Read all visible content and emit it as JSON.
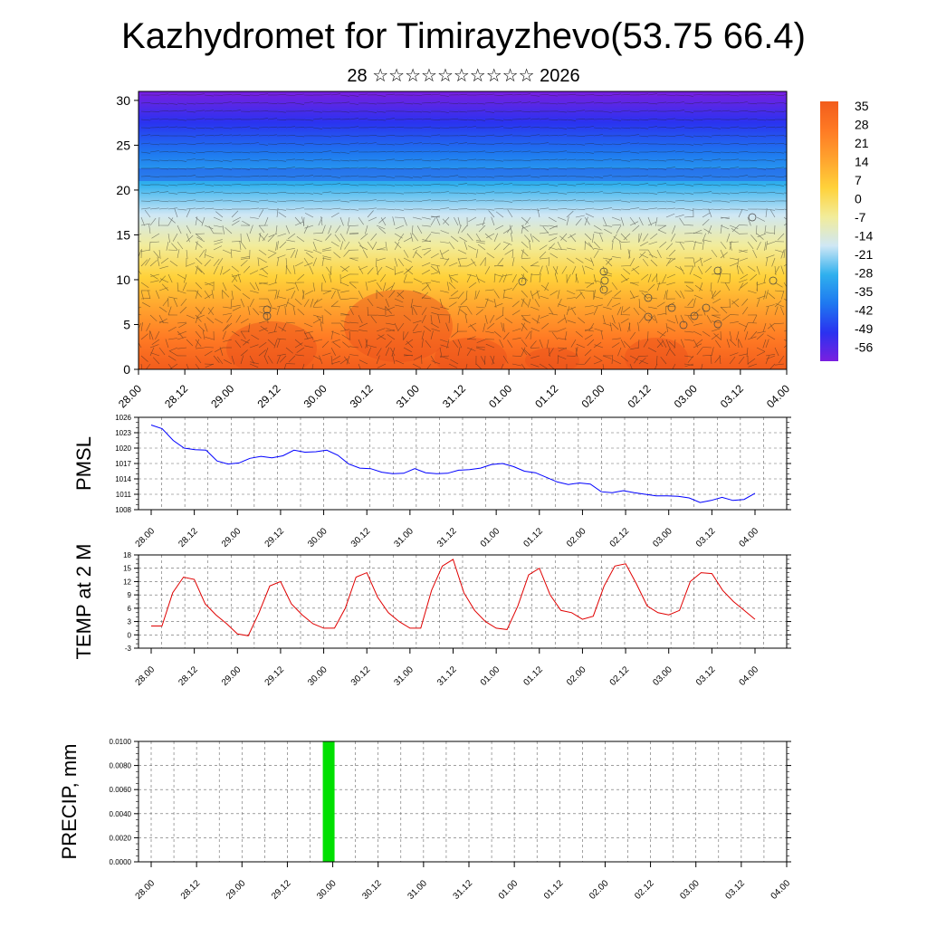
{
  "title": "Kazhydromet for Timirayzhevo(53.75 66.4)",
  "subtitle": "28 ☆☆☆☆☆☆☆☆☆☆ 2026",
  "chart_data": [
    {
      "id": "cross-section",
      "type": "heatmap",
      "description_of_fill": "temperature cross-section with wind barbs",
      "y_range": [
        0,
        31
      ],
      "y_ticks": [
        0,
        5,
        10,
        15,
        20,
        25,
        30
      ],
      "x_ticks": [
        "28.00",
        "28.12",
        "29.00",
        "29.12",
        "30.00",
        "30.12",
        "31.00",
        "31.12",
        "01.00",
        "01.12",
        "02.00",
        "02.12",
        "03.00",
        "03.12",
        "04.00"
      ],
      "color_levels": [
        35,
        28,
        21,
        14,
        7,
        0,
        -7,
        -14,
        -21,
        -28,
        -35,
        -42,
        -49,
        -56
      ],
      "color_stops": [
        "#7a1fe0",
        "#2a32f0",
        "#1e78f0",
        "#2fb0ee",
        "#cfe7f5",
        "#f2ec9a",
        "#ffd23a",
        "#ffa32e",
        "#ff7a24",
        "#f25c1c"
      ]
    },
    {
      "id": "pmsl",
      "type": "line",
      "ylabel": "PMSL",
      "ylim": [
        1008,
        1026
      ],
      "y_ticks": [
        1008,
        1011,
        1014,
        1017,
        1020,
        1023,
        1026
      ],
      "x_ticks": [
        "28.00",
        "28.12",
        "29.00",
        "29.12",
        "30.00",
        "30.12",
        "31.00",
        "31.12",
        "01.00",
        "01.12",
        "02.00",
        "02.12",
        "03.00",
        "03.12",
        "04.00"
      ],
      "series": [
        {
          "name": "PMSL",
          "color": "#0000ff",
          "values": [
            1024.5,
            1023.8,
            1021.5,
            1020,
            1019.7,
            1019.6,
            1017.5,
            1016.9,
            1017.1,
            1018,
            1018.4,
            1018.1,
            1018.5,
            1019.6,
            1019.2,
            1019.3,
            1019.6,
            1018.6,
            1016.9,
            1016.1,
            1016,
            1015.3,
            1015,
            1015.1,
            1016,
            1015.2,
            1015,
            1015.1,
            1015.7,
            1015.8,
            1016.1,
            1016.8,
            1017,
            1016.4,
            1015.5,
            1015.2,
            1014.3,
            1013.4,
            1012.9,
            1013.2,
            1013,
            1011.5,
            1011.3,
            1011.7,
            1011.3,
            1011,
            1010.7,
            1010.7,
            1010.6,
            1010.3,
            1009.4,
            1009.8,
            1010.4,
            1009.8,
            1010,
            1011.2
          ]
        }
      ]
    },
    {
      "id": "temp2m",
      "type": "line",
      "ylabel": "TEMP at 2 M",
      "ylim": [
        -3,
        18
      ],
      "y_ticks": [
        -3,
        0,
        3,
        6,
        9,
        12,
        15,
        18
      ],
      "x_ticks": [
        "28.00",
        "28.12",
        "29.00",
        "29.12",
        "30.00",
        "30.12",
        "31.00",
        "31.12",
        "01.00",
        "01.12",
        "02.00",
        "02.12",
        "03.00",
        "03.12",
        "04.00"
      ],
      "series": [
        {
          "name": "TEMP at 2 M",
          "color": "#e00000",
          "values": [
            2,
            2,
            9.5,
            13,
            12.5,
            7,
            4.5,
            2.5,
            0.2,
            -0.2,
            5,
            11,
            12,
            7,
            4.5,
            2.5,
            1.5,
            1.5,
            6,
            13,
            14,
            8.5,
            5,
            3,
            1.5,
            1.5,
            10,
            15.5,
            17,
            9.5,
            5.5,
            3,
            1.5,
            1.2,
            6.5,
            13.5,
            15,
            9,
            5.5,
            5,
            3.5,
            4.2,
            11,
            15.5,
            16,
            11.5,
            6.5,
            5,
            4.5,
            5.5,
            12,
            14,
            13.8,
            10,
            7.5,
            5.5,
            3.5
          ]
        }
      ]
    },
    {
      "id": "precip",
      "type": "bar",
      "ylabel": "PRECIP, mm",
      "ylim": [
        0,
        0.01
      ],
      "y_ticks": [
        "0.0000",
        "0.0020",
        "0.0040",
        "0.0060",
        "0.0080",
        "0.0100"
      ],
      "x_ticks": [
        "28.00",
        "28.12",
        "29.00",
        "29.12",
        "30.00",
        "30.12",
        "31.00",
        "31.12",
        "01.00",
        "01.12",
        "02.00",
        "02.12",
        "03.00",
        "03.12",
        "04.00"
      ],
      "bars": [
        {
          "x_hours": 48,
          "value": 0.01,
          "color": "#00e000"
        }
      ]
    }
  ]
}
